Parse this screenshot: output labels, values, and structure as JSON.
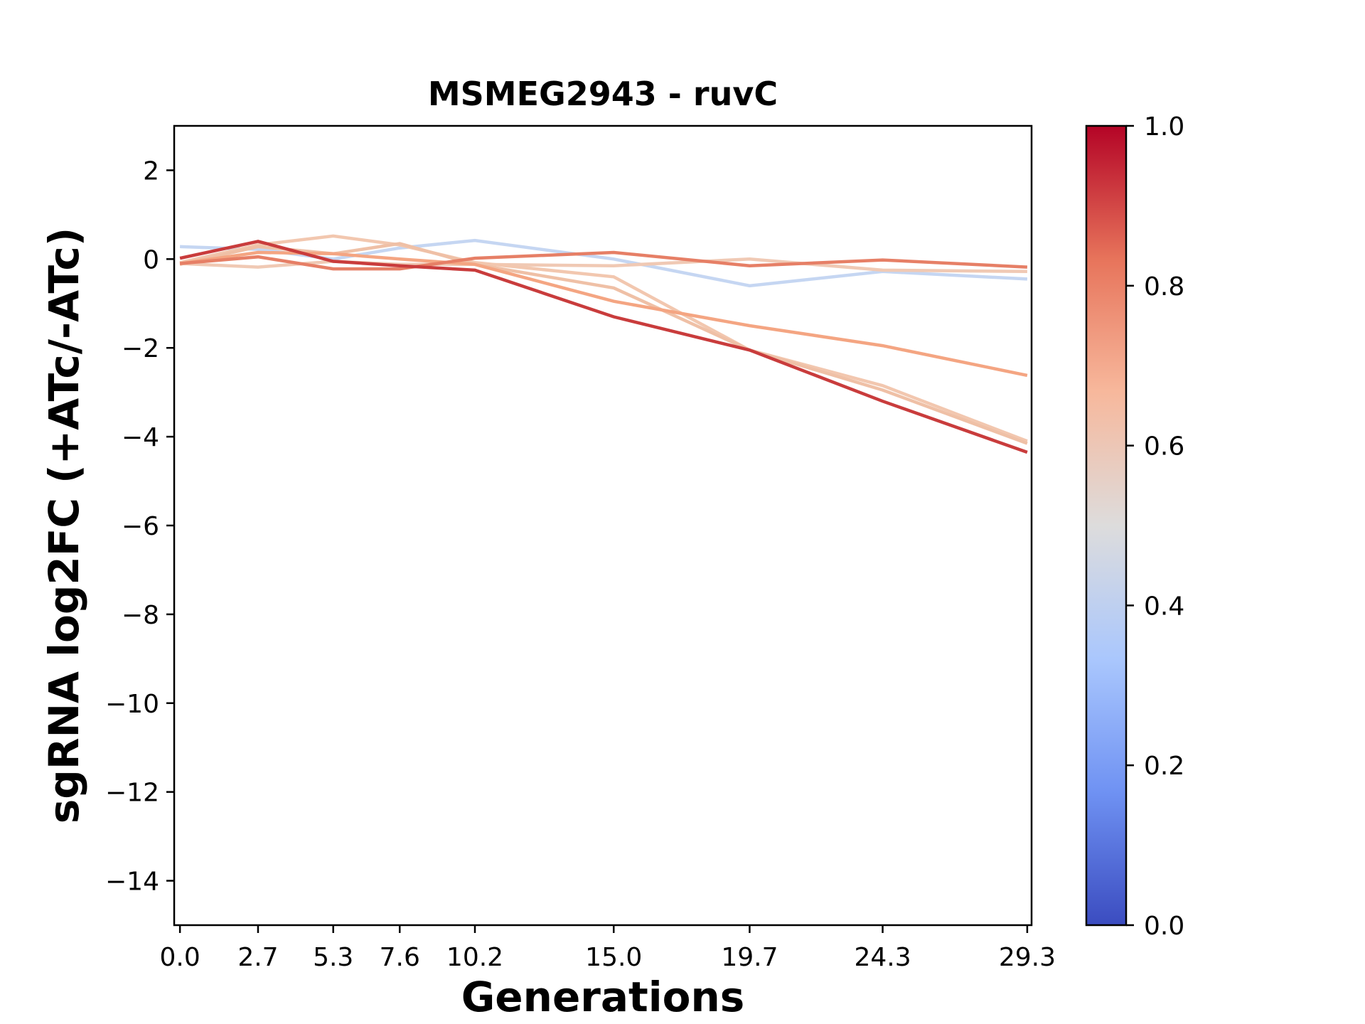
{
  "chart_data": {
    "type": "line",
    "title": "MSMEG2943 - ruvC",
    "xlabel": "Generations",
    "ylabel": "sgRNA log2FC (+ATc/-ATc)",
    "x": [
      0.0,
      2.7,
      5.3,
      7.6,
      10.2,
      15.0,
      19.7,
      24.3,
      29.3
    ],
    "x_tick_labels": [
      "0.0",
      "2.7",
      "5.3",
      "7.6",
      "10.2",
      "15.0",
      "19.7",
      "24.3",
      "29.3"
    ],
    "xlim": [
      -0.2,
      29.45
    ],
    "ylim": [
      -15,
      3
    ],
    "y_ticks": [
      2,
      0,
      -2,
      -4,
      -6,
      -8,
      -10,
      -12,
      -14
    ],
    "y_tick_labels": [
      "2",
      "0",
      "−2",
      "−4",
      "−6",
      "−8",
      "−10",
      "−12",
      "−14"
    ],
    "grid": false,
    "colormap": "coolwarm",
    "colorbar": {
      "range": [
        0.0,
        1.0
      ],
      "ticks": [
        0.0,
        0.2,
        0.4,
        0.6,
        0.8,
        1.0
      ],
      "tick_labels": [
        "0.0",
        "0.2",
        "0.4",
        "0.6",
        "0.8",
        "1.0"
      ],
      "gradient_colors": [
        "#3b4cc0",
        "#6f92f3",
        "#aac7fd",
        "#dddcdc",
        "#f7b89c",
        "#e7745b",
        "#b40426"
      ]
    },
    "series": [
      {
        "color": "#c5d6f2",
        "values": [
          0.28,
          0.22,
          0.0,
          0.25,
          0.42,
          0.0,
          -0.6,
          -0.28,
          -0.45
        ]
      },
      {
        "color": "#f0c9b4",
        "values": [
          -0.1,
          -0.18,
          -0.05,
          -0.12,
          -0.12,
          -0.15,
          0.0,
          -0.25,
          -0.28
        ]
      },
      {
        "color": "#f2c7af",
        "values": [
          -0.08,
          0.32,
          0.52,
          0.32,
          -0.08,
          -0.4,
          -2.05,
          -2.85,
          -4.1
        ]
      },
      {
        "color": "#efc0a6",
        "values": [
          -0.12,
          0.28,
          0.12,
          0.35,
          -0.12,
          -0.65,
          -2.05,
          -2.95,
          -4.15
        ]
      },
      {
        "color": "#f4a582",
        "values": [
          -0.1,
          0.15,
          0.12,
          0.0,
          -0.12,
          -0.95,
          -1.5,
          -1.95,
          -2.62
        ]
      },
      {
        "color": "#e67f66",
        "values": [
          -0.1,
          0.05,
          -0.22,
          -0.22,
          0.02,
          0.15,
          -0.15,
          -0.02,
          -0.18
        ]
      },
      {
        "color": "#c93c3c",
        "values": [
          0.02,
          0.4,
          -0.05,
          -0.15,
          -0.25,
          -1.3,
          -2.05,
          -3.2,
          -4.35
        ]
      }
    ]
  }
}
